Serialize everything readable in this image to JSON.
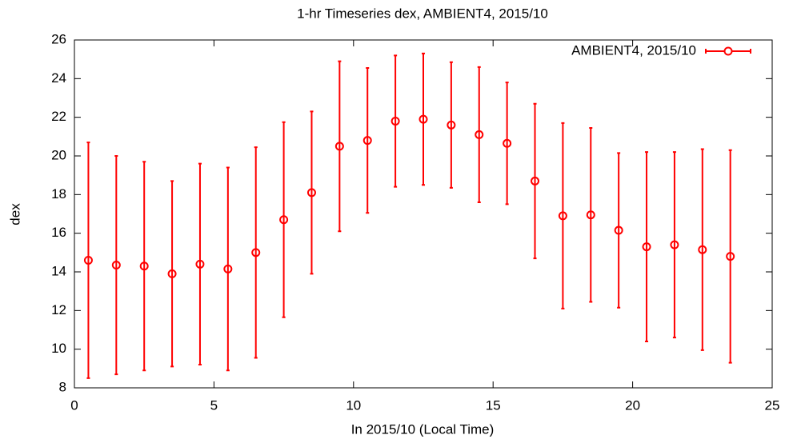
{
  "chart_data": {
    "type": "errorbar",
    "title": "1-hr Timeseries dex, AMBIENT4, 2015/10",
    "x_label": "In 2015/10 (Local Time)",
    "y_label": "dex",
    "x": [
      0.5,
      1.5,
      2.5,
      3.5,
      4.5,
      5.5,
      6.5,
      7.5,
      8.5,
      9.5,
      10.5,
      11.5,
      12.5,
      13.5,
      14.5,
      15.5,
      16.5,
      17.5,
      18.5,
      19.5,
      20.5,
      21.5,
      22.5,
      23.5
    ],
    "series": [
      {
        "name": "AMBIENT4, 2015/10",
        "color": "#ff0000",
        "values": [
          14.6,
          14.35,
          14.3,
          13.9,
          14.4,
          14.15,
          15.0,
          16.7,
          18.1,
          20.5,
          20.8,
          21.8,
          21.9,
          21.6,
          21.1,
          20.65,
          18.7,
          16.9,
          16.95,
          16.15,
          15.3,
          15.4,
          15.15,
          14.8
        ],
        "errors": [
          6.1,
          5.65,
          5.4,
          4.8,
          5.2,
          5.25,
          5.45,
          5.05,
          4.2,
          4.4,
          3.75,
          3.4,
          3.4,
          3.25,
          3.5,
          3.15,
          4.0,
          4.8,
          4.5,
          4.0,
          4.9,
          4.8,
          5.2,
          5.5
        ]
      }
    ],
    "xlim": [
      0,
      25
    ],
    "xticks": [
      0,
      5,
      10,
      15,
      20,
      25
    ],
    "ylim": [
      8,
      26
    ],
    "yticks": [
      8,
      10,
      12,
      14,
      16,
      18,
      20,
      22,
      24,
      26
    ],
    "legend": "top-right"
  }
}
